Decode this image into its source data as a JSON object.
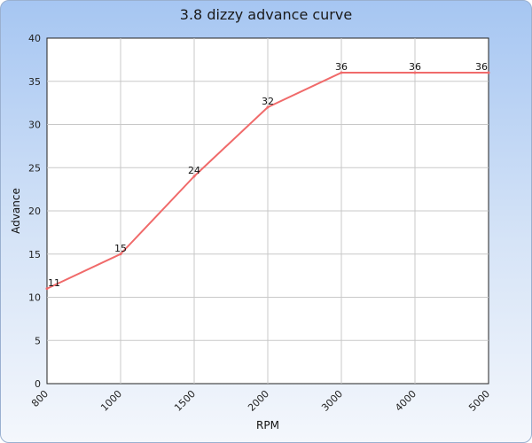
{
  "chart_data": {
    "type": "line",
    "title": "3.8 dizzy advance curve",
    "xlabel": "RPM",
    "ylabel": "Advance",
    "categories": [
      "800",
      "1000",
      "1500",
      "2000",
      "3000",
      "4000",
      "5000"
    ],
    "series": [
      {
        "values": [
          11,
          15,
          24,
          32,
          36,
          36,
          36
        ],
        "color": "#f06a6a"
      }
    ],
    "ylim": [
      0,
      40
    ],
    "yticks": [
      0,
      5,
      10,
      15,
      20,
      25,
      30,
      35,
      40
    ],
    "grid": true,
    "data_labels": true,
    "legend": "none"
  }
}
